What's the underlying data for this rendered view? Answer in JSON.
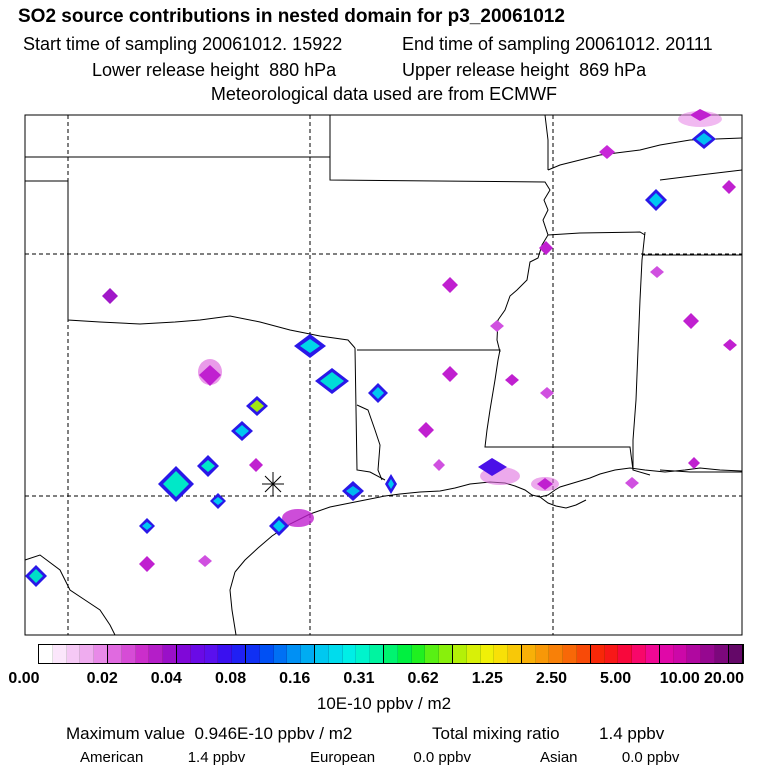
{
  "header": {
    "title": "SO2 source contributions in nested domain for p3_20061012",
    "start_label": "Start time of sampling",
    "start_value": "20061012. 15922",
    "end_label": "End time of sampling",
    "end_value": "20061012. 20111",
    "lower_label": "Lower release height",
    "lower_value": "880 hPa",
    "upper_label": "Upper release height",
    "upper_value": "869 hPa",
    "met_line": "Meteorological data used are from ECMWF"
  },
  "map": {
    "release_marker": "asterisk-marker",
    "colors": {
      "background": "#ffffff",
      "borders": "#000000",
      "grid": "#000000"
    }
  },
  "colorbar": {
    "colors": [
      "#ffffff",
      "#fbe6fb",
      "#f5c9f5",
      "#efacef",
      "#e88ae8",
      "#e06ae0",
      "#d64cd6",
      "#cb2ecb",
      "#b41ec8",
      "#9a10c8",
      "#8008d8",
      "#6a0ae6",
      "#5a10ee",
      "#3a10f0",
      "#2020f4",
      "#1030f4",
      "#0050f4",
      "#0070f4",
      "#0090f4",
      "#00acf2",
      "#00c8f0",
      "#00dced",
      "#00eee6",
      "#00f4cc",
      "#00f4a0",
      "#00f470",
      "#00f040",
      "#20f020",
      "#58f014",
      "#88f00c",
      "#b4f008",
      "#d8f008",
      "#f0f008",
      "#f8e008",
      "#f8c808",
      "#f8b008",
      "#f89808",
      "#f88008",
      "#f86808",
      "#f84a08",
      "#f82808",
      "#f81818",
      "#f8083c",
      "#f8086a",
      "#f00894",
      "#e008a8",
      "#cc08a8",
      "#b008a0",
      "#960890",
      "#7c087c",
      "#640868"
    ],
    "tick_labels": [
      "0.00",
      "0.02",
      "0.04",
      "0.08",
      "0.16",
      "0.31",
      "0.62",
      "1.25",
      "2.50",
      "5.00",
      "10.00",
      "20.00"
    ],
    "units": "10E-10 ppbv / m2"
  },
  "footer": {
    "max_label": "Maximum value",
    "max_value": "0.946E-10 ppbv / m2",
    "total_label": "Total mixing ratio",
    "total_value": "1.4 ppbv",
    "regions": [
      {
        "name": "American",
        "value": "1.4 ppbv"
      },
      {
        "name": "European",
        "value": "0.0 ppbv"
      },
      {
        "name": "Asian",
        "value": "0.0 ppbv"
      }
    ]
  }
}
